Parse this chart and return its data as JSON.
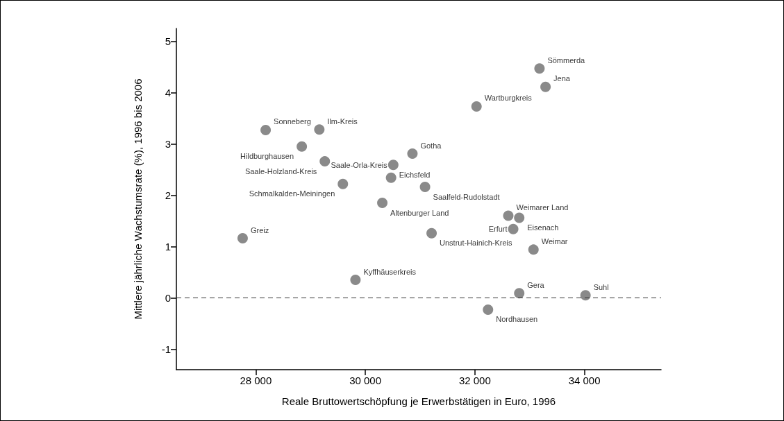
{
  "chart_data": {
    "type": "scatter",
    "xlabel": "Reale Bruttowertschöpfung je Erwerbstätigen in Euro, 1996",
    "ylabel": "Mittlere jährliche Wachstumsrate (%), 1996 bis 2006",
    "xlim": [
      26550,
      35400
    ],
    "xticks": [
      {
        "value": 28000,
        "label": "28 000"
      },
      {
        "value": 30000,
        "label": "30 000"
      },
      {
        "value": 32000,
        "label": "32 000"
      },
      {
        "value": 34000,
        "label": "34 000"
      }
    ],
    "ylim": [
      -1.4,
      5.25
    ],
    "yticks": [
      -1,
      0,
      1,
      2,
      3,
      4,
      5
    ],
    "grid": false,
    "legend": false,
    "marker": "circle",
    "ref_lines": [
      {
        "axis": "y",
        "value": 0,
        "label": null,
        "color": "#333333",
        "line_style": "dashed"
      }
    ],
    "series": [
      {
        "name": "Sonneberg",
        "color": "#6d6d6d",
        "x": [
          28180
        ],
        "values": [
          3.27
        ]
      },
      {
        "name": "Ilm-Kreis",
        "color": "#6d6d6d",
        "x": [
          29160
        ],
        "values": [
          3.28
        ]
      },
      {
        "name": "Hildburghausen",
        "color": "#6d6d6d",
        "x": [
          28840
        ],
        "values": [
          2.95
        ]
      },
      {
        "name": "Saale-Holzland-Kreis",
        "color": "#6d6d6d",
        "x": [
          29260
        ],
        "values": [
          2.66
        ]
      },
      {
        "name": "Schmalkalden-Meiningen",
        "color": "#6d6d6d",
        "x": [
          29590
        ],
        "values": [
          2.22
        ]
      },
      {
        "name": "Saale-Orla-Kreis",
        "color": "#6d6d6d",
        "x": [
          30510
        ],
        "values": [
          2.59
        ]
      },
      {
        "name": "Eichsfeld",
        "color": "#6d6d6d",
        "x": [
          30470
        ],
        "values": [
          2.34
        ]
      },
      {
        "name": "Gotha",
        "color": "#6d6d6d",
        "x": [
          30860
        ],
        "values": [
          2.81
        ]
      },
      {
        "name": "Saalfeld-Rudolstadt",
        "color": "#6d6d6d",
        "x": [
          31090
        ],
        "values": [
          2.16
        ]
      },
      {
        "name": "Altenburger Land",
        "color": "#6d6d6d",
        "x": [
          30310
        ],
        "values": [
          1.85
        ]
      },
      {
        "name": "Unstrut-Hainich-Kreis",
        "color": "#6d6d6d",
        "x": [
          31210
        ],
        "values": [
          1.26
        ]
      },
      {
        "name": "Wartburgkreis",
        "color": "#6d6d6d",
        "x": [
          32030
        ],
        "values": [
          3.73
        ]
      },
      {
        "name": "Sömmerda",
        "color": "#6d6d6d",
        "x": [
          33180
        ],
        "values": [
          4.47
        ]
      },
      {
        "name": "Jena",
        "color": "#6d6d6d",
        "x": [
          33290
        ],
        "values": [
          4.11
        ]
      },
      {
        "name": "Weimarer Land",
        "color": "#6d6d6d",
        "x": [
          32610
        ],
        "values": [
          1.6
        ]
      },
      {
        "name": "Eisenach",
        "color": "#6d6d6d",
        "x": [
          32810
        ],
        "values": [
          1.56
        ]
      },
      {
        "name": "Erfurt",
        "color": "#6d6d6d",
        "x": [
          32700
        ],
        "values": [
          1.34
        ]
      },
      {
        "name": "Weimar",
        "color": "#6d6d6d",
        "x": [
          33070
        ],
        "values": [
          0.94
        ]
      },
      {
        "name": "Gera",
        "color": "#6d6d6d",
        "x": [
          32810
        ],
        "values": [
          0.09
        ]
      },
      {
        "name": "Suhl",
        "color": "#6d6d6d",
        "x": [
          34020
        ],
        "values": [
          0.05
        ]
      },
      {
        "name": "Nordhausen",
        "color": "#6d6d6d",
        "x": [
          32240
        ],
        "values": [
          -0.23
        ]
      },
      {
        "name": "Kyffhäuserkreis",
        "color": "#6d6d6d",
        "x": [
          29820
        ],
        "values": [
          0.35
        ]
      },
      {
        "name": "Greiz",
        "color": "#6d6d6d",
        "x": [
          27760
        ],
        "values": [
          1.16
        ]
      }
    ]
  }
}
